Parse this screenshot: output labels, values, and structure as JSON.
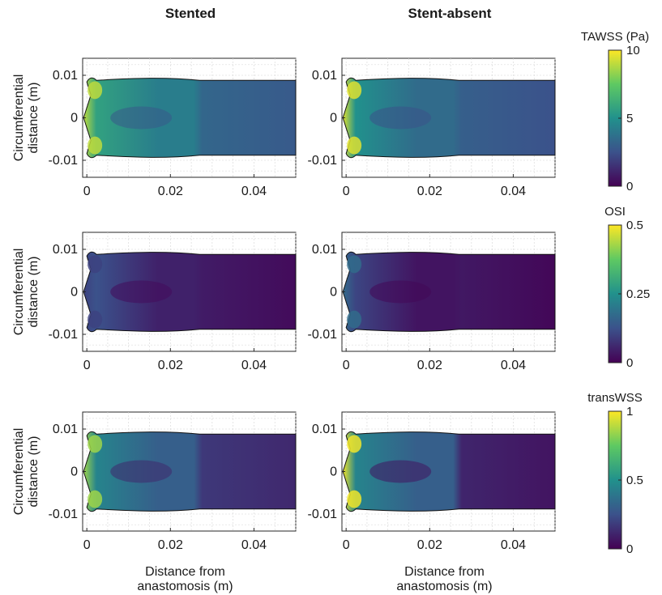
{
  "chart_data": {
    "type": "heatmap",
    "columns": [
      "Stented",
      "Stent-absent"
    ],
    "xlabel": [
      "Distance from",
      "anastomosis (m)"
    ],
    "ylabel": [
      "Circumferential",
      "distance (m)"
    ],
    "xlim": [
      -0.001,
      0.05
    ],
    "ylim": [
      -0.014,
      0.014
    ],
    "xticks": [
      0,
      0.02,
      0.04
    ],
    "xtick_labels": [
      "0",
      "0.02",
      "0.04"
    ],
    "yticks": [
      0.01,
      0,
      -0.01
    ],
    "ytick_labels": [
      "0.01",
      "0",
      "-0.01"
    ],
    "vessel_halfwidth": 0.0088,
    "stent_end": 0.027,
    "grid": true,
    "colormap": [
      "#440154",
      "#3b528b",
      "#21918c",
      "#5ec962",
      "#fde725"
    ],
    "rows": [
      {
        "metric": "TAWSS (Pa)",
        "colorbar": {
          "title": "TAWSS (Pa)",
          "range": [
            0,
            10
          ],
          "ticks": [
            10,
            5,
            0
          ],
          "tick_labels": [
            "10",
            "5",
            "0"
          ]
        },
        "panels": [
          {
            "column": "Stented",
            "background_level": 0.28,
            "stent_region_level": 0.42,
            "inlet_level": 0.9
          },
          {
            "column": "Stent-absent",
            "background_level": 0.25,
            "stent_region_level": 0.35,
            "inlet_level": 0.95
          }
        ]
      },
      {
        "metric": "OSI",
        "colorbar": {
          "title": "OSI",
          "range": [
            0,
            0.5
          ],
          "ticks": [
            0.5,
            0.25,
            0
          ],
          "tick_labels": [
            "0.5",
            "0.25",
            "0"
          ]
        },
        "panels": [
          {
            "column": "Stented",
            "background_level": 0.03,
            "stent_region_level": 0.1,
            "inlet_level": 0.2
          },
          {
            "column": "Stent-absent",
            "background_level": 0.02,
            "stent_region_level": 0.06,
            "inlet_level": 0.35
          }
        ]
      },
      {
        "metric": "transWSS",
        "colorbar": {
          "title": "transWSS",
          "range": [
            0,
            1
          ],
          "ticks": [
            1,
            0.5,
            0
          ],
          "tick_labels": [
            "1",
            "0.5",
            "0"
          ]
        },
        "panels": [
          {
            "column": "Stented",
            "background_level": 0.12,
            "stent_region_level": 0.3,
            "inlet_level": 0.85
          },
          {
            "column": "Stent-absent",
            "background_level": 0.06,
            "stent_region_level": 0.3,
            "inlet_level": 0.98
          }
        ]
      }
    ]
  }
}
